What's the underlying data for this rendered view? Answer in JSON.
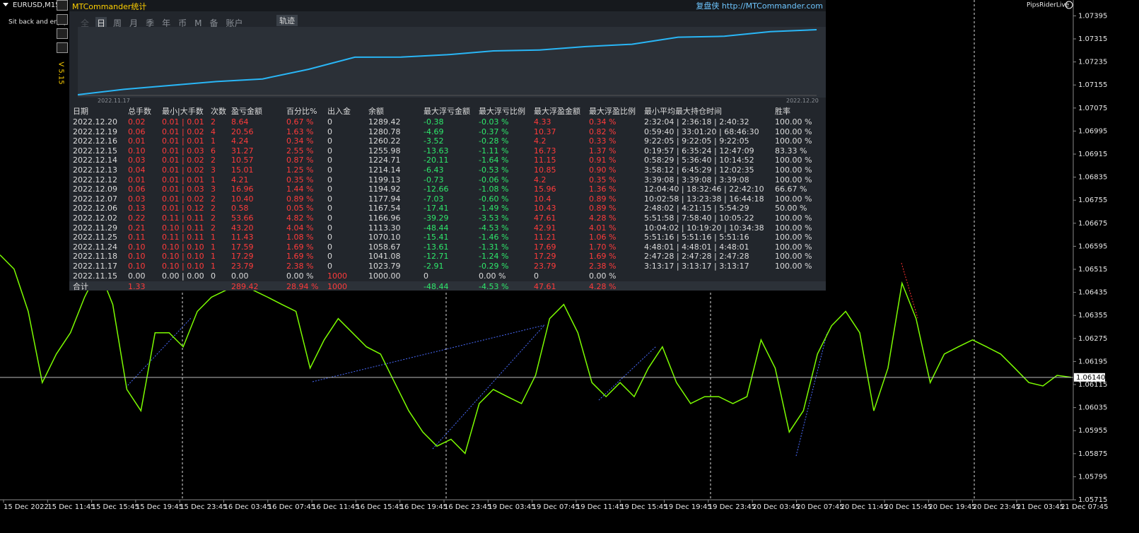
{
  "header": {
    "symbol": "EURUSD,M15",
    "tagline": "Sit back and enjoy the ride",
    "brand": "PipsRiderLive"
  },
  "chart_data": {
    "type": "line",
    "color": "#7cfc00",
    "values": [
      1.06565,
      1.06516,
      1.06369,
      1.06122,
      1.06221,
      1.06295,
      1.06418,
      1.06516,
      1.06393,
      1.06098,
      1.06024,
      1.06295,
      1.06295,
      1.06246,
      1.06369,
      1.06418,
      1.06442,
      1.06467,
      1.06442,
      1.06418,
      1.06393,
      1.06369,
      1.06172,
      1.0627,
      1.06344,
      1.06295,
      1.06246,
      1.06221,
      1.06122,
      1.06024,
      1.0595,
      1.05901,
      1.05925,
      1.05876,
      1.06049,
      1.06098,
      1.06073,
      1.06049,
      1.06147,
      1.06344,
      1.06393,
      1.06295,
      1.06122,
      1.06073,
      1.06122,
      1.06073,
      1.06172,
      1.06246,
      1.06122,
      1.06049,
      1.06073,
      1.06073,
      1.06049,
      1.06073,
      1.0627,
      1.06172,
      1.0595,
      1.06024,
      1.06221,
      1.06319,
      1.06369,
      1.06295,
      1.06024,
      1.06172,
      1.06467,
      1.06344,
      1.06122,
      1.06221,
      1.06246,
      1.0627,
      1.06246,
      1.06221,
      1.06172,
      1.06122,
      1.0611,
      1.06147,
      1.0614
    ],
    "ylim": [
      1.05715,
      1.0745
    ],
    "yticks": [
      1.07395,
      1.07315,
      1.07235,
      1.07155,
      1.07075,
      1.06995,
      1.06915,
      1.06835,
      1.06755,
      1.06675,
      1.06595,
      1.06515,
      1.06435,
      1.06355,
      1.06275,
      1.06195,
      1.06115,
      1.06035,
      1.05955,
      1.05875,
      1.05795,
      1.05715
    ],
    "current_price": {
      "value": 1.0614,
      "label": "1.06140"
    },
    "time_labels": [
      "15 Dec 2022",
      "15 Dec 11:45",
      "15 Dec 15:45",
      "15 Dec 19:45",
      "15 Dec 23:45",
      "16 Dec 03:45",
      "16 Dec 07:45",
      "16 Dec 11:45",
      "16 Dec 15:45",
      "16 Dec 19:45",
      "16 Dec 23:45",
      "19 Dec 03:45",
      "19 Dec 07:45",
      "19 Dec 11:45",
      "19 Dec 15:45",
      "19 Dec 19:45",
      "19 Dec 23:45",
      "20 Dec 03:45",
      "20 Dec 07:45",
      "20 Dec 11:45",
      "20 Dec 15:45",
      "20 Dec 19:45",
      "20 Dec 23:45",
      "21 Dec 03:45",
      "21 Dec 07:45"
    ]
  },
  "panel": {
    "title": "MTCommander统计",
    "link": "复盘侠 http://MTCommander.com",
    "version": "V 5.15",
    "tabs": [
      "全",
      "日",
      "周",
      "月",
      "季",
      "年",
      "币",
      "M",
      "备",
      "账户"
    ],
    "trail_button": "轨迹",
    "curve_start": "2022.11.17",
    "curve_end": "2022.12.20"
  },
  "table": {
    "columns": [
      "日期",
      "总手数",
      "最小|大手数",
      "次数",
      "盈亏金额",
      "百分比%",
      "出入金",
      "余额",
      "最大浮亏金额",
      "最大浮亏比例",
      "最大浮盈金额",
      "最大浮盈比例",
      "最小平均最大持仓时间",
      "胜率"
    ],
    "rows": [
      [
        "2022.12.20",
        "0.02",
        "0.01 | 0.01",
        "2",
        "8.64",
        "0.67 %",
        "0",
        "1289.42",
        "-0.38",
        "-0.03 %",
        "4.33",
        "0.34 %",
        "2:32:04 | 2:36:18 | 2:40:32",
        "100.00 %"
      ],
      [
        "2022.12.19",
        "0.06",
        "0.01 | 0.02",
        "4",
        "20.56",
        "1.63 %",
        "0",
        "1280.78",
        "-4.69",
        "-0.37 %",
        "10.37",
        "0.82 %",
        "0:59:40 | 33:01:20 | 68:46:30",
        "100.00 %"
      ],
      [
        "2022.12.16",
        "0.01",
        "0.01 | 0.01",
        "1",
        "4.24",
        "0.34 %",
        "0",
        "1260.22",
        "-3.52",
        "-0.28 %",
        "4.2",
        "0.33 %",
        "9:22:05 | 9:22:05 | 9:22:05",
        "100.00 %"
      ],
      [
        "2022.12.15",
        "0.10",
        "0.01 | 0.03",
        "6",
        "31.27",
        "2.55 %",
        "0",
        "1255.98",
        "-13.63",
        "-1.11 %",
        "16.73",
        "1.37 %",
        "0:19:57 | 6:35:24 | 12:47:09",
        "83.33 %"
      ],
      [
        "2022.12.14",
        "0.03",
        "0.01 | 0.02",
        "2",
        "10.57",
        "0.87 %",
        "0",
        "1224.71",
        "-20.11",
        "-1.64 %",
        "11.15",
        "0.91 %",
        "0:58:29 | 5:36:40 | 10:14:52",
        "100.00 %"
      ],
      [
        "2022.12.13",
        "0.04",
        "0.01 | 0.02",
        "3",
        "15.01",
        "1.25 %",
        "0",
        "1214.14",
        "-6.43",
        "-0.53 %",
        "10.85",
        "0.90 %",
        "3:58:12 | 6:45:29 | 12:02:35",
        "100.00 %"
      ],
      [
        "2022.12.12",
        "0.01",
        "0.01 | 0.01",
        "1",
        "4.21",
        "0.35 %",
        "0",
        "1199.13",
        "-0.73",
        "-0.06 %",
        "4.2",
        "0.35 %",
        "3:39:08 | 3:39:08 | 3:39:08",
        "100.00 %"
      ],
      [
        "2022.12.09",
        "0.06",
        "0.01 | 0.03",
        "3",
        "16.96",
        "1.44 %",
        "0",
        "1194.92",
        "-12.66",
        "-1.08 %",
        "15.96",
        "1.36 %",
        "12:04:40 | 18:32:46 | 22:42:10",
        "66.67 %"
      ],
      [
        "2022.12.07",
        "0.03",
        "0.01 | 0.02",
        "2",
        "10.40",
        "0.89 %",
        "0",
        "1177.94",
        "-7.03",
        "-0.60 %",
        "10.4",
        "0.89 %",
        "10:02:58 | 13:23:38 | 16:44:18",
        "100.00 %"
      ],
      [
        "2022.12.06",
        "0.13",
        "0.01 | 0.12",
        "2",
        "0.58",
        "0.05 %",
        "0",
        "1167.54",
        "-17.41",
        "-1.49 %",
        "10.43",
        "0.89 %",
        "2:48:02 | 4:21:15 | 5:54:29",
        "50.00 %"
      ],
      [
        "2022.12.02",
        "0.22",
        "0.11 | 0.11",
        "2",
        "53.66",
        "4.82 %",
        "0",
        "1166.96",
        "-39.29",
        "-3.53 %",
        "47.61",
        "4.28 %",
        "5:51:58 | 7:58:40 | 10:05:22",
        "100.00 %"
      ],
      [
        "2022.11.29",
        "0.21",
        "0.10 | 0.11",
        "2",
        "43.20",
        "4.04 %",
        "0",
        "1113.30",
        "-48.44",
        "-4.53 %",
        "42.91",
        "4.01 %",
        "10:04:02 | 10:19:20 | 10:34:38",
        "100.00 %"
      ],
      [
        "2022.11.25",
        "0.11",
        "0.11 | 0.11",
        "1",
        "11.43",
        "1.08 %",
        "0",
        "1070.10",
        "-15.41",
        "-1.46 %",
        "11.21",
        "1.06 %",
        "5:51:16 | 5:51:16 | 5:51:16",
        "100.00 %"
      ],
      [
        "2022.11.24",
        "0.10",
        "0.10 | 0.10",
        "1",
        "17.59",
        "1.69 %",
        "0",
        "1058.67",
        "-13.61",
        "-1.31 %",
        "17.69",
        "1.70 %",
        "4:48:01 | 4:48:01 | 4:48:01",
        "100.00 %"
      ],
      [
        "2022.11.18",
        "0.10",
        "0.10 | 0.10",
        "1",
        "17.29",
        "1.69 %",
        "0",
        "1041.08",
        "-12.71",
        "-1.24 %",
        "17.29",
        "1.69 %",
        "2:47:28 | 2:47:28 | 2:47:28",
        "100.00 %"
      ],
      [
        "2022.11.17",
        "0.10",
        "0.10 | 0.10",
        "1",
        "23.79",
        "2.38 %",
        "0",
        "1023.79",
        "-2.91",
        "-0.29 %",
        "23.79",
        "2.38 %",
        "3:13:17 | 3:13:17 | 3:13:17",
        "100.00 %"
      ],
      [
        "2022.11.15",
        "0.00",
        "0.00 | 0.00",
        "0",
        "0.00",
        "0.00 %",
        "1000",
        "1000.00",
        "0",
        "0.00 %",
        "0",
        "0.00 %"
      ]
    ],
    "total": {
      "label": "合计",
      "lots": "1.33",
      "pnl": "289.42",
      "pct": "28.94 %",
      "deposit": "1000",
      "max_loss": "-48.44",
      "max_loss_pct": "-4.53 %",
      "max_profit": "47.61",
      "max_profit_pct": "4.28 %"
    }
  }
}
